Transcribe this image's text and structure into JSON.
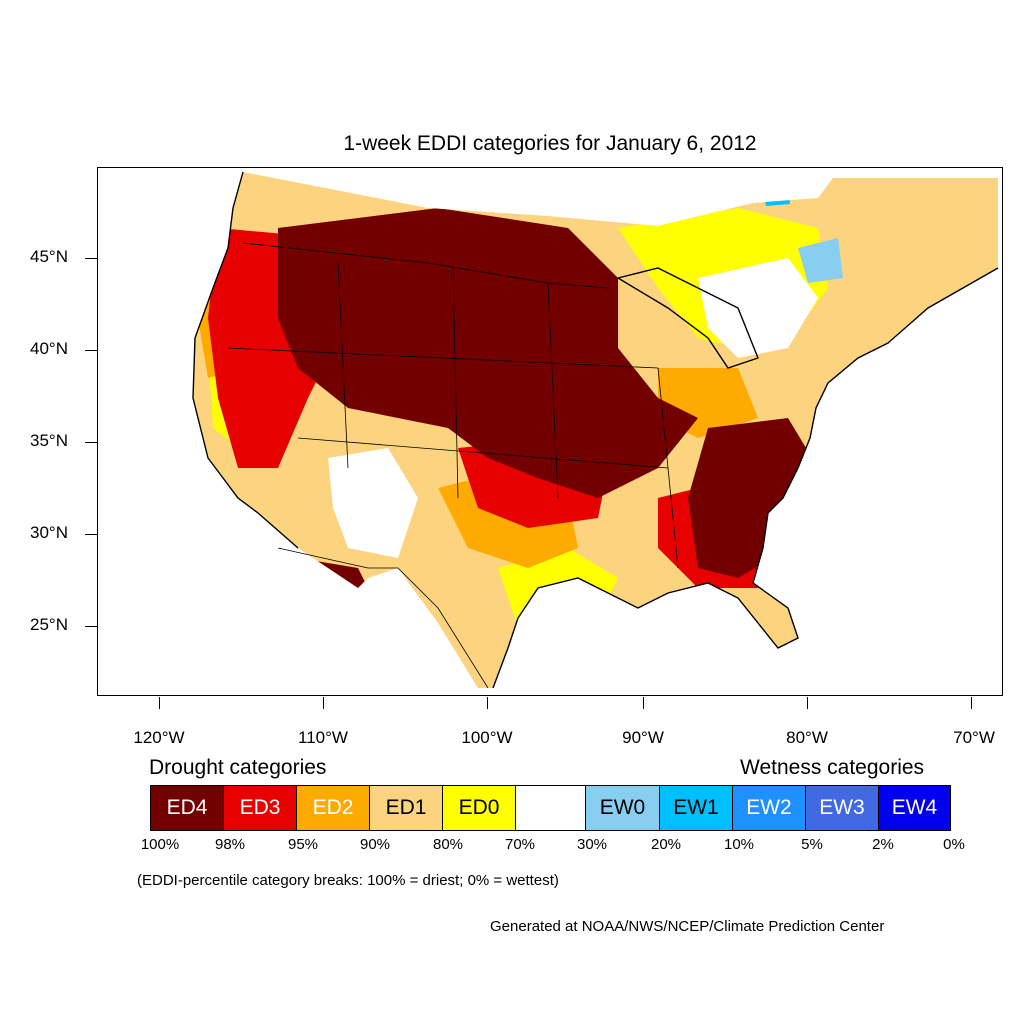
{
  "title": "1-week EDDI categories for January 6, 2012",
  "latitude_labels": [
    "45°N",
    "40°N",
    "35°N",
    "30°N",
    "25°N"
  ],
  "longitude_labels": [
    "120°W",
    "110°W",
    "100°W",
    "90°W",
    "80°W",
    "70°W"
  ],
  "drought_heading": "Drought categories",
  "wetness_heading": "Wetness categories",
  "legend": [
    {
      "label": "ED4",
      "color": "#730000",
      "text_color": "#ffffff"
    },
    {
      "label": "ED3",
      "color": "#e60000",
      "text_color": "#ffffff"
    },
    {
      "label": "ED2",
      "color": "#ffaa00",
      "text_color": "#ffffff"
    },
    {
      "label": "ED1",
      "color": "#fcd37f",
      "text_color": "#000000"
    },
    {
      "label": "ED0",
      "color": "#ffff00",
      "text_color": "#000000"
    },
    {
      "label": "",
      "color": "#ffffff",
      "text_color": "#000000"
    },
    {
      "label": "EW0",
      "color": "#87cef0",
      "text_color": "#000000"
    },
    {
      "label": "EW1",
      "color": "#00bfff",
      "text_color": "#000000"
    },
    {
      "label": "EW2",
      "color": "#1e90ff",
      "text_color": "#ffffff"
    },
    {
      "label": "EW3",
      "color": "#4169e1",
      "text_color": "#ffffff"
    },
    {
      "label": "EW4",
      "color": "#0000ee",
      "text_color": "#ffffff"
    }
  ],
  "breaks": [
    "100%",
    "98%",
    "95%",
    "90%",
    "80%",
    "70%",
    "30%",
    "20%",
    "10%",
    "5%",
    "2%",
    "0%"
  ],
  "note": "(EDDI-percentile category breaks: 100% = driest; 0% = wettest)",
  "credit": "Generated at NOAA/NWS/NCEP/Climate Prediction Center"
}
